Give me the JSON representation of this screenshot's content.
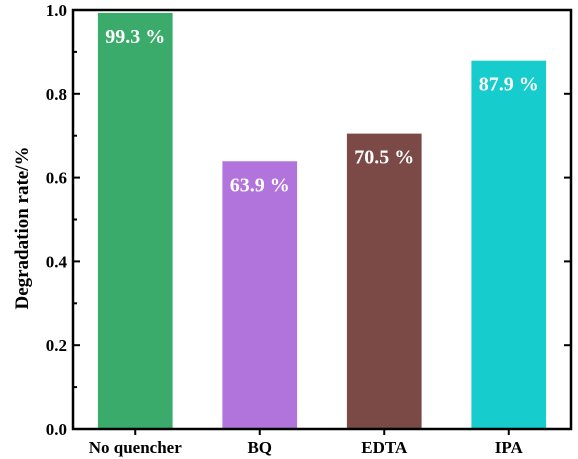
{
  "chart_data": {
    "type": "bar",
    "categories": [
      "No quencher",
      "BQ",
      "EDTA",
      "IPA"
    ],
    "values": [
      0.993,
      0.639,
      0.705,
      0.879
    ],
    "data_labels": [
      "99.3 %",
      "63.9 %",
      "70.5 %",
      "87.9 %"
    ],
    "colors": [
      "#3aab6a",
      "#b173dc",
      "#7b4a47",
      "#17cccc"
    ],
    "title": "",
    "xlabel": "",
    "ylabel": "Degradation rate/%",
    "ylim": [
      0.0,
      1.0
    ],
    "yticks": [
      "0.0",
      "0.2",
      "0.4",
      "0.6",
      "0.8",
      "1.0"
    ],
    "grid": false,
    "legend": "none"
  }
}
